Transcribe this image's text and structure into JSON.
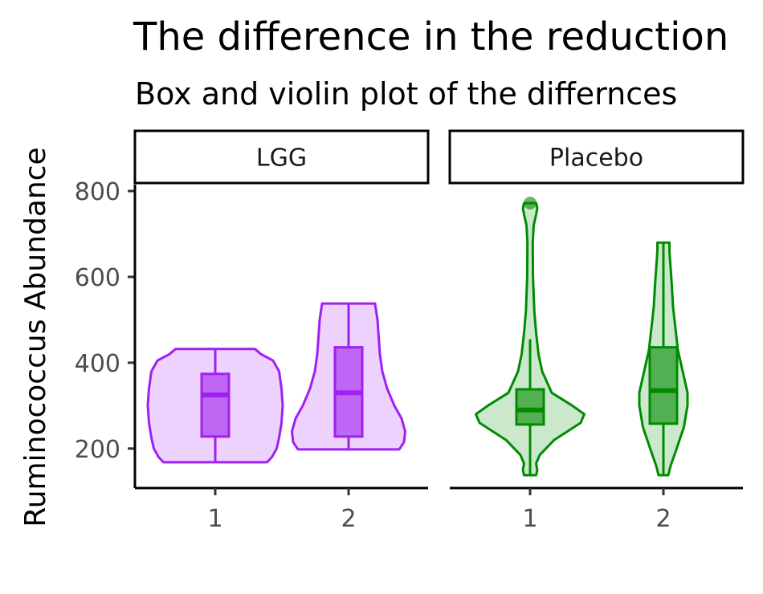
{
  "chart_data": {
    "type": "violin",
    "title": "The difference in the reduction",
    "subtitle": "Box and violin plot of the differnces",
    "ylabel": "Ruminococcus Abundance",
    "xlabel": "",
    "ylim": [
      108,
      815
    ],
    "yticks": [
      200,
      400,
      600,
      800
    ],
    "colors": {
      "LGG": "#a020f0",
      "Placebo": "#008b00"
    },
    "facets": [
      {
        "name": "LGG",
        "groups": [
          {
            "x": "1",
            "min": 168,
            "q1": 228,
            "median": 325,
            "q3": 374,
            "max": 432,
            "outliers": [],
            "density": [
              [
                168,
                0.43
              ],
              [
                180,
                0.47
              ],
              [
                200,
                0.51
              ],
              [
                225,
                0.53
              ],
              [
                260,
                0.55
              ],
              [
                300,
                0.56
              ],
              [
                340,
                0.55
              ],
              [
                380,
                0.53
              ],
              [
                405,
                0.48
              ],
              [
                420,
                0.38
              ],
              [
                432,
                0.33
              ]
            ]
          },
          {
            "x": "2",
            "min": 198,
            "q1": 228,
            "median": 330,
            "q3": 436,
            "max": 538,
            "outliers": [],
            "density": [
              [
                198,
                0.42
              ],
              [
                215,
                0.46
              ],
              [
                240,
                0.47
              ],
              [
                270,
                0.44
              ],
              [
                300,
                0.38
              ],
              [
                340,
                0.32
              ],
              [
                380,
                0.28
              ],
              [
                420,
                0.26
              ],
              [
                460,
                0.25
              ],
              [
                500,
                0.24
              ],
              [
                538,
                0.22
              ]
            ]
          }
        ]
      },
      {
        "name": "Placebo",
        "groups": [
          {
            "x": "1",
            "min": 138,
            "q1": 256,
            "median": 290,
            "q3": 338,
            "max": 455,
            "outliers": [
              772
            ],
            "density": [
              [
                138,
                0.05
              ],
              [
                150,
                0.06
              ],
              [
                165,
                0.05
              ],
              [
                185,
                0.08
              ],
              [
                220,
                0.2
              ],
              [
                260,
                0.42
              ],
              [
                280,
                0.45
              ],
              [
                300,
                0.35
              ],
              [
                330,
                0.18
              ],
              [
                380,
                0.1
              ],
              [
                420,
                0.07
              ],
              [
                470,
                0.05
              ],
              [
                520,
                0.035
              ],
              [
                600,
                0.024
              ],
              [
                680,
                0.022
              ],
              [
                720,
                0.03
              ],
              [
                745,
                0.05
              ],
              [
                760,
                0.06
              ],
              [
                772,
                0.05
              ]
            ]
          },
          {
            "x": "2",
            "min": 138,
            "q1": 258,
            "median": 335,
            "q3": 436,
            "max": 680,
            "outliers": [],
            "density": [
              [
                138,
                0.04
              ],
              [
                160,
                0.06
              ],
              [
                200,
                0.11
              ],
              [
                250,
                0.17
              ],
              [
                300,
                0.2
              ],
              [
                330,
                0.2
              ],
              [
                380,
                0.16
              ],
              [
                430,
                0.12
              ],
              [
                480,
                0.1
              ],
              [
                530,
                0.08
              ],
              [
                580,
                0.07
              ],
              [
                620,
                0.06
              ],
              [
                660,
                0.05
              ],
              [
                680,
                0.05
              ]
            ]
          }
        ]
      }
    ],
    "grid": false,
    "legend": "none"
  }
}
